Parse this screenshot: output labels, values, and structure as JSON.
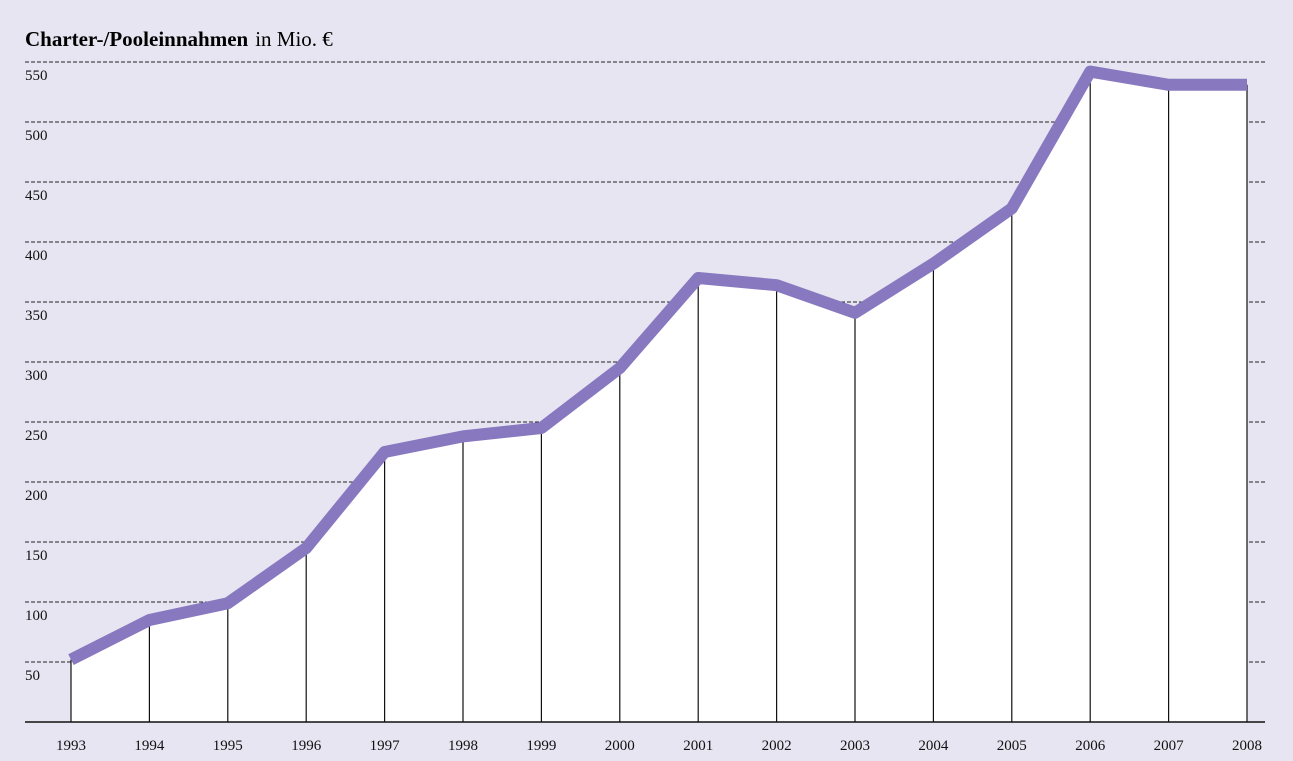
{
  "chart_data": {
    "type": "area-line",
    "title": "Charter-/Pooleinnahmen",
    "title_unit": "in Mio. €",
    "categories": [
      "1993",
      "1994",
      "1995",
      "1996",
      "1997",
      "1998",
      "1999",
      "2000",
      "2001",
      "2002",
      "2003",
      "2004",
      "2005",
      "2006",
      "2007",
      "2008"
    ],
    "values": [
      52,
      85,
      99,
      145,
      225,
      238,
      245,
      295,
      370,
      364,
      341,
      382,
      428,
      542,
      531,
      531
    ],
    "color": "#8878c0",
    "ylim": [
      0,
      550
    ],
    "yticks": [
      50,
      100,
      150,
      200,
      250,
      300,
      350,
      400,
      450,
      500,
      550
    ],
    "grid": true
  }
}
